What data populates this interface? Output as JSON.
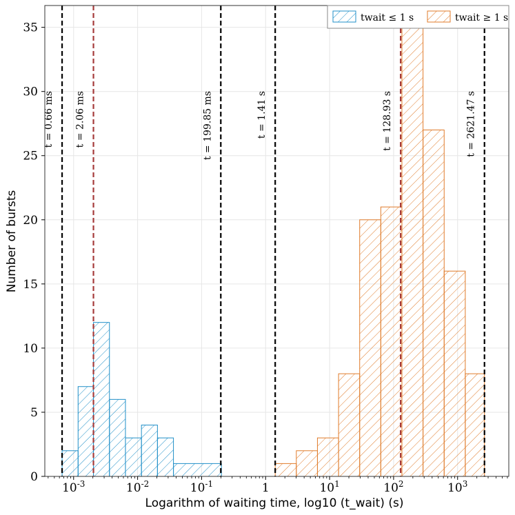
{
  "chart_data": {
    "type": "bar",
    "xlabel": "Logarithm of waiting time, log10 (t_wait) (s)",
    "ylabel": "Number of bursts",
    "xscale": "log10",
    "xlim_log10": [
      -3.45,
      3.8
    ],
    "ylim": [
      0,
      36.7
    ],
    "grid": true,
    "legend_position": "top-right",
    "x_ticks": [
      {
        "log10": -3,
        "label": "10^-3"
      },
      {
        "log10": -2,
        "label": "10^-2"
      },
      {
        "log10": -1,
        "label": "10^-1"
      },
      {
        "log10": 0,
        "label": "1"
      },
      {
        "log10": 1,
        "label": "10^1"
      },
      {
        "log10": 2,
        "label": "10^2"
      },
      {
        "log10": 3,
        "label": "10^3"
      }
    ],
    "y_ticks": [
      0,
      5,
      10,
      15,
      20,
      25,
      30,
      35
    ],
    "series": [
      {
        "name": "t_wait ≤ 1 s",
        "legend_label": "twait ≤ 1 s",
        "color": "#1f8fc8",
        "bin_edges_log10": [
          -3.18,
          -2.93,
          -2.69,
          -2.44,
          -2.19,
          -1.94,
          -1.69,
          -1.44,
          -0.69
        ],
        "counts": [
          2,
          7,
          12,
          6,
          3,
          4,
          3,
          1
        ]
      },
      {
        "name": "t_wait ≥ 1 s",
        "legend_label": "twait ≥ 1 s",
        "color": "#e07b2a",
        "bin_edges_log10": [
          0.15,
          0.48,
          0.81,
          1.14,
          1.47,
          1.8,
          2.13,
          2.46,
          2.79,
          3.12,
          3.42
        ],
        "counts": [
          1,
          2,
          3,
          8,
          20,
          21,
          35,
          27,
          16,
          8
        ]
      }
    ],
    "vlines": [
      {
        "log10": -3.18,
        "label": "t = 0.66 ms",
        "color": "#000000"
      },
      {
        "log10": -2.69,
        "label": "t = 2.06 ms",
        "color": "#a53a3a"
      },
      {
        "log10": -0.7,
        "label": "t = 199.85 ms",
        "color": "#000000"
      },
      {
        "log10": 0.15,
        "label": "t = 1.41 s",
        "color": "#000000"
      },
      {
        "log10": 2.11,
        "label": "t = 128.93 s",
        "color": "#a53a3a"
      },
      {
        "log10": 3.42,
        "label": "t = 2621.47 s",
        "color": "#000000"
      }
    ]
  }
}
